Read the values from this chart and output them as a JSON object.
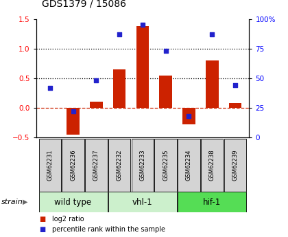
{
  "title": "GDS1379 / 15086",
  "samples": [
    "GSM62231",
    "GSM62236",
    "GSM62237",
    "GSM62232",
    "GSM62233",
    "GSM62235",
    "GSM62234",
    "GSM62238",
    "GSM62239"
  ],
  "log2_ratio": [
    0.0,
    -0.45,
    0.1,
    0.65,
    1.38,
    0.54,
    -0.28,
    0.8,
    0.08
  ],
  "percentile_rank": [
    42,
    22,
    48,
    87,
    95,
    73,
    18,
    87,
    44
  ],
  "groups": [
    {
      "label": "wild type",
      "start": 0,
      "end": 3,
      "color": "#ccf0cc"
    },
    {
      "label": "vhl-1",
      "start": 3,
      "end": 6,
      "color": "#ccf0cc"
    },
    {
      "label": "hif-1",
      "start": 6,
      "end": 9,
      "color": "#55dd55"
    }
  ],
  "ylim_left": [
    -0.5,
    1.5
  ],
  "ylim_right": [
    0,
    100
  ],
  "yticks_left": [
    -0.5,
    0.0,
    0.5,
    1.0,
    1.5
  ],
  "yticks_right": [
    0,
    25,
    50,
    75,
    100
  ],
  "hlines": [
    0.5,
    1.0
  ],
  "bar_color": "#cc2200",
  "dot_color": "#2222cc",
  "bar_width": 0.55,
  "legend_bar_label": "log2 ratio",
  "legend_dot_label": "percentile rank within the sample",
  "strain_label": "strain",
  "group_label_fontsize": 8.5,
  "title_fontsize": 10,
  "tick_fontsize": 7.5,
  "sample_fontsize": 6.0
}
